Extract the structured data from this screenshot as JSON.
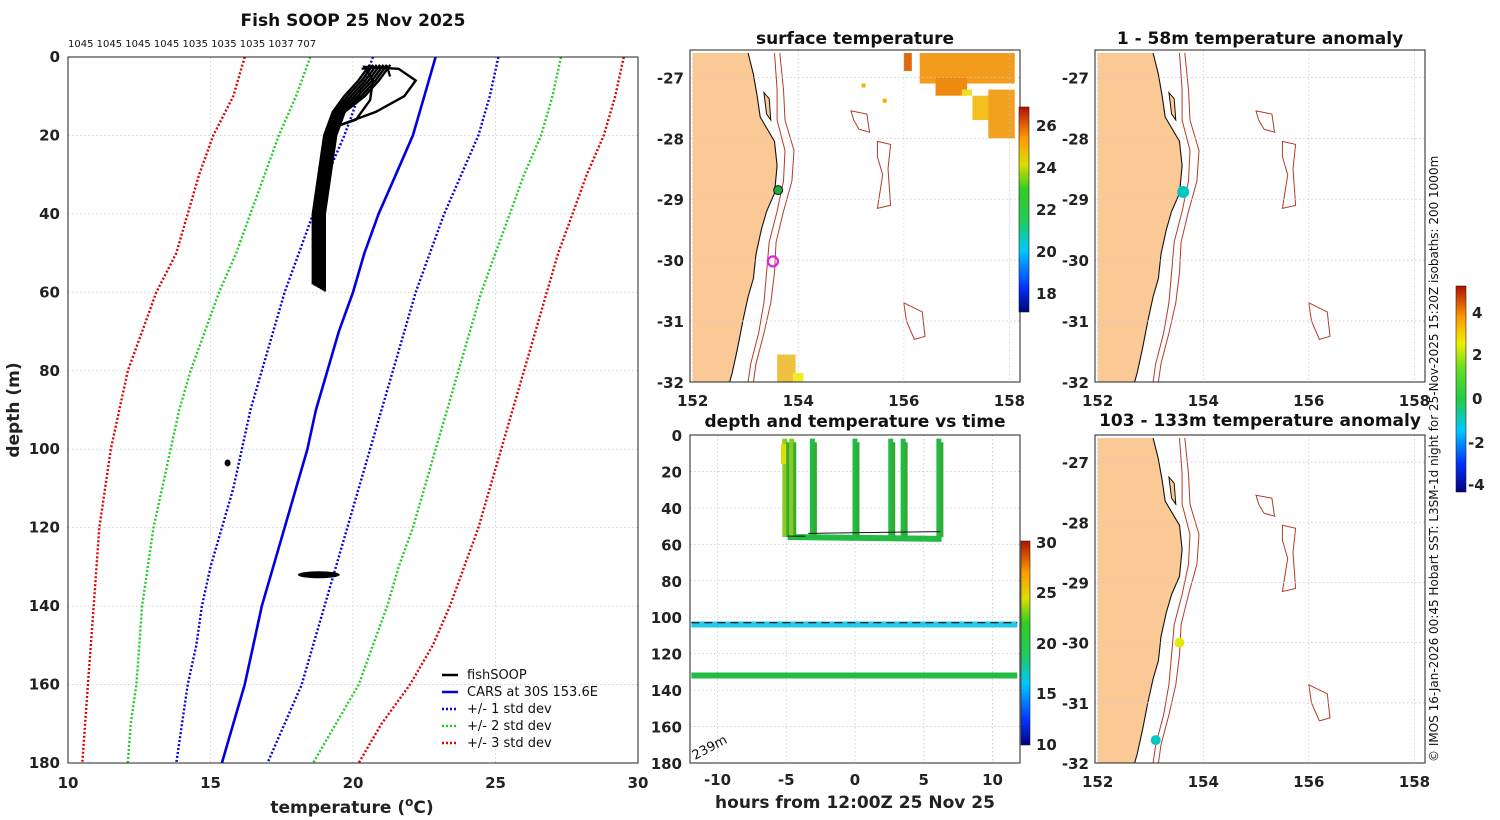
{
  "profile": {
    "title": "Fish SOOP 25 Nov 2025",
    "top_numbers": "1045 1045 1045 1045 1035 1035 1035 1037 707",
    "xlabel": "temperature (",
    "xlabel_sup": "o",
    "xlabel_end": "C)",
    "ylabel": "depth (m)",
    "legend": [
      "fishSOOP",
      "CARS at 30S 153.6E",
      "+/- 1 std dev",
      "+/- 2 std dev",
      "+/- 3 std dev"
    ],
    "colors": {
      "fish": "#000000",
      "cars": "#0000e0",
      "sd1": "#0000e0",
      "sd2": "#22cc22",
      "sd3": "#e00000"
    }
  },
  "maps": {
    "surface_title": "surface temperature",
    "anom1_title": "1 - 58m temperature anomaly",
    "anom2_title": "103 - 133m temperature anomaly",
    "surface_colorbar_ticks": [
      "26",
      "24",
      "22",
      "20",
      "18"
    ],
    "anomaly_colorbar_ticks": [
      "4",
      "2",
      "0",
      "-2",
      "-4"
    ]
  },
  "timeplot": {
    "title": "depth and temperature vs time",
    "xlabel": "hours from 12:00Z 25 Nov 25",
    "bottom_label": "239m",
    "colorbar_ticks": [
      "30",
      "25",
      "20",
      "15",
      "10"
    ]
  },
  "side_text": "© IMOS 16-Jan-2026 00:45 Hobart SST: L3SM-1d night for 25-Nov-2025 15:20Z isobaths: 200  1000m",
  "chart_data": [
    {
      "type": "line",
      "title": "Fish SOOP 25 Nov 2025",
      "xlabel": "temperature (oC)",
      "ylabel": "depth (m)",
      "xlim": [
        10,
        30
      ],
      "ylim": [
        180,
        0
      ],
      "xticks": [
        10,
        15,
        20,
        25,
        30
      ],
      "yticks": [
        0,
        20,
        40,
        60,
        80,
        100,
        120,
        140,
        160,
        180
      ],
      "depth": [
        0,
        10,
        20,
        30,
        40,
        50,
        60,
        70,
        80,
        90,
        100,
        110,
        120,
        130,
        140,
        150,
        160,
        170,
        180
      ],
      "series": [
        {
          "name": "CARS at 30S 153.6E",
          "values": [
            22.9,
            22.5,
            22.1,
            21.5,
            20.9,
            20.4,
            20.0,
            19.5,
            19.1,
            18.7,
            18.4,
            18.0,
            17.6,
            17.2,
            16.8,
            16.5,
            16.2,
            15.8,
            15.4
          ]
        },
        {
          "name": "+/- 1 std dev (upper)",
          "values": [
            25.1,
            24.8,
            24.4,
            23.8,
            23.2,
            22.7,
            22.2,
            21.8,
            21.4,
            21.0,
            20.6,
            20.2,
            19.8,
            19.4,
            19.0,
            18.6,
            18.2,
            17.6,
            17.0
          ]
        },
        {
          "name": "+/- 1 std dev (lower)",
          "values": [
            20.7,
            20.2,
            19.7,
            19.1,
            18.6,
            18.1,
            17.6,
            17.2,
            16.8,
            16.4,
            16.1,
            15.8,
            15.4,
            15.0,
            14.7,
            14.5,
            14.2,
            14.0,
            13.8
          ]
        },
        {
          "name": "+/- 2 std dev (upper)",
          "values": [
            27.3,
            27.0,
            26.6,
            26.0,
            25.5,
            25.0,
            24.5,
            24.1,
            23.7,
            23.3,
            22.9,
            22.5,
            22.1,
            21.6,
            21.2,
            20.7,
            20.2,
            19.4,
            18.6
          ]
        },
        {
          "name": "+/- 2 std dev (lower)",
          "values": [
            18.5,
            18.0,
            17.4,
            16.9,
            16.4,
            15.9,
            15.3,
            14.8,
            14.3,
            13.9,
            13.6,
            13.3,
            13.0,
            12.8,
            12.6,
            12.5,
            12.4,
            12.2,
            12.1
          ]
        },
        {
          "name": "+/- 3 std dev (upper)",
          "values": [
            29.5,
            29.2,
            28.8,
            28.2,
            27.7,
            27.2,
            26.8,
            26.4,
            26.0,
            25.6,
            25.2,
            24.8,
            24.4,
            23.9,
            23.4,
            22.8,
            22.0,
            21.0,
            20.2
          ]
        },
        {
          "name": "+/- 3 std dev (lower)",
          "values": [
            16.2,
            15.8,
            15.1,
            14.6,
            14.2,
            13.8,
            13.1,
            12.6,
            12.1,
            11.8,
            11.5,
            11.3,
            11.1,
            11.0,
            10.9,
            10.8,
            10.7,
            10.6,
            10.5
          ]
        }
      ],
      "fishSOOP_upcast": {
        "depth": [
          58,
          50,
          40,
          30,
          20,
          14,
          10,
          6,
          2
        ],
        "temp": [
          18.8,
          18.8,
          18.8,
          19.0,
          19.2,
          19.5,
          19.9,
          20.4,
          20.8
        ]
      },
      "fishSOOP_loop": {
        "depth": [
          18,
          14,
          10,
          6,
          3,
          2.5,
          6,
          11,
          16,
          18
        ],
        "temp": [
          19.3,
          20.8,
          21.8,
          22.2,
          21.6,
          20.4,
          20.7,
          20.6,
          20.1,
          19.3
        ]
      },
      "fishSOOP_clusters": [
        {
          "temp": 15.6,
          "depth": 103.5
        },
        {
          "temp": 18.8,
          "depth": 132
        }
      ],
      "legend_position": "bottom-right"
    },
    {
      "type": "heatmap",
      "title": "surface temperature",
      "xticks": [
        152,
        154,
        156,
        158
      ],
      "yticks": [
        -27,
        -28,
        -29,
        -30,
        -31,
        -32
      ],
      "xlim": [
        151.95,
        158.2
      ],
      "ylim": [
        -32,
        -26.55
      ],
      "colorbar": {
        "min": 17,
        "max": 27,
        "ticks": [
          18,
          20,
          22,
          24,
          26
        ]
      },
      "markers": [
        {
          "lon": 153.62,
          "lat": -28.85,
          "type": "dot"
        },
        {
          "lon": 153.52,
          "lat": -30.02,
          "type": "ring"
        }
      ]
    },
    {
      "type": "heatmap",
      "title": "1 - 58m temperature anomaly",
      "xticks": [
        152,
        154,
        156,
        158
      ],
      "yticks": [
        -27,
        -28,
        -29,
        -30,
        -31,
        -32
      ],
      "colorbar": {
        "min": -4.5,
        "max": 5,
        "ticks": [
          4,
          2,
          0,
          -2,
          -4
        ]
      },
      "markers": [
        {
          "lon": 153.62,
          "lat": -28.88,
          "anomaly": -1.7
        }
      ]
    },
    {
      "type": "scatter",
      "title": "depth and temperature vs time",
      "xlabel": "hours from 12:00Z 25 Nov 25",
      "xlim": [
        -12,
        12
      ],
      "ylim": [
        180,
        0
      ],
      "xticks": [
        -10,
        -5,
        0,
        5,
        10
      ],
      "yticks": [
        0,
        20,
        40,
        60,
        80,
        100,
        120,
        140,
        160,
        180
      ],
      "colorbar": {
        "min": 10,
        "max": 30,
        "ticks": [
          10,
          15,
          20,
          25,
          30
        ]
      },
      "casts_hours": [
        -5.1,
        -4.6,
        -3.1,
        0.0,
        2.6,
        3.5,
        6.1
      ],
      "cast_bottom_depth_m": 56,
      "layers": [
        {
          "depth": 104,
          "temp": 15.5
        },
        {
          "depth": 132,
          "temp": 20.6
        }
      ],
      "reference_depth_m": 103
    },
    {
      "type": "heatmap",
      "title": "103 - 133m temperature anomaly",
      "xticks": [
        152,
        154,
        156,
        158
      ],
      "yticks": [
        -27,
        -28,
        -29,
        -30,
        -31,
        -32
      ],
      "markers": [
        {
          "lon": 153.55,
          "lat": -30.0,
          "anomaly": 2.3
        },
        {
          "lon": 153.1,
          "lat": -31.62,
          "anomaly": -1.5
        }
      ]
    }
  ]
}
